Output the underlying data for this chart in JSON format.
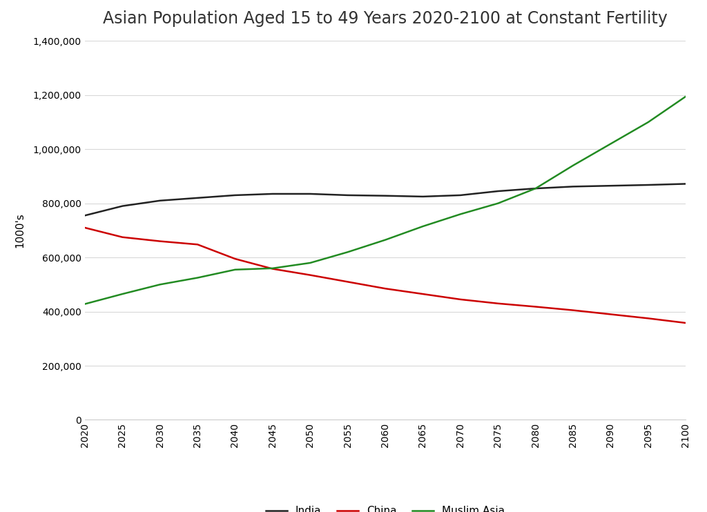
{
  "title": "Asian Population Aged 15 to 49 Years 2020-2100 at Constant Fertility",
  "ylabel": "1000's",
  "years": [
    2020,
    2025,
    2030,
    2035,
    2040,
    2045,
    2050,
    2055,
    2060,
    2065,
    2070,
    2075,
    2080,
    2085,
    2090,
    2095,
    2100
  ],
  "india": [
    755000,
    790000,
    810000,
    820000,
    830000,
    835000,
    835000,
    830000,
    828000,
    825000,
    830000,
    845000,
    855000,
    862000,
    865000,
    868000,
    872000
  ],
  "china": [
    710000,
    675000,
    660000,
    648000,
    595000,
    558000,
    535000,
    510000,
    485000,
    465000,
    445000,
    430000,
    418000,
    405000,
    390000,
    375000,
    358000
  ],
  "muslim_asia": [
    428000,
    465000,
    500000,
    525000,
    555000,
    560000,
    580000,
    620000,
    665000,
    715000,
    760000,
    800000,
    855000,
    940000,
    1020000,
    1100000,
    1195000
  ],
  "india_color": "#222222",
  "china_color": "#cc0000",
  "muslim_asia_color": "#228B22",
  "ylim": [
    0,
    1400000
  ],
  "yticks": [
    0,
    200000,
    400000,
    600000,
    800000,
    1000000,
    1200000,
    1400000
  ],
  "background_color": "#ffffff",
  "grid_color": "#d8d8d8",
  "title_fontsize": 17,
  "axis_label_fontsize": 11,
  "tick_fontsize": 10,
  "legend_fontsize": 11,
  "line_width": 1.8
}
